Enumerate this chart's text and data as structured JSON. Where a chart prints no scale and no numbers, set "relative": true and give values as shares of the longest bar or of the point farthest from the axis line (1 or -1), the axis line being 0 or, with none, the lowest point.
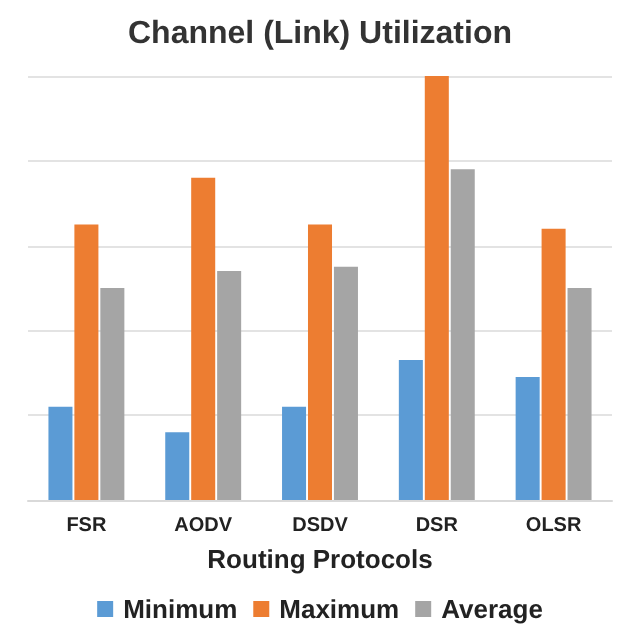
{
  "chart_data": {
    "type": "bar",
    "title": "Channel (Link) Utilization",
    "xlabel": "Routing Protocols",
    "categories": [
      "FSR",
      "AODV",
      "DSDV",
      "DSR",
      "OLSR"
    ],
    "series": [
      {
        "name": "Minimum",
        "color": "#5b9bd5",
        "values": [
          0.22,
          0.16,
          0.22,
          0.33,
          0.29
        ]
      },
      {
        "name": "Maximum",
        "color": "#ed7d31",
        "values": [
          0.65,
          0.76,
          0.65,
          1,
          0.64
        ]
      },
      {
        "name": "Average",
        "color": "#a5a5a5",
        "values": [
          0.5,
          0.54,
          0.55,
          0.78,
          0.5
        ]
      }
    ],
    "relative": true,
    "grid": "y",
    "legend": "bottom"
  }
}
